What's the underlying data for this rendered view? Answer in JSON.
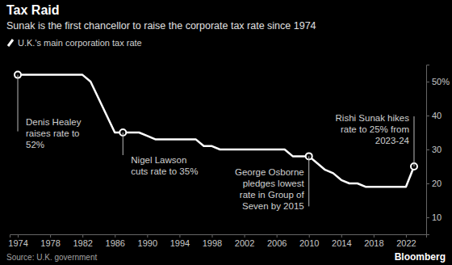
{
  "chart_data": {
    "type": "line",
    "title": "Tax Raid",
    "subtitle": "Sunak is the first chancellor to raise the corporate tax rate since 1974",
    "source": "Source: U.K. government",
    "brand": "Bloomberg",
    "x": [
      1974,
      1975,
      1976,
      1977,
      1978,
      1979,
      1980,
      1981,
      1982,
      1983,
      1984,
      1985,
      1986,
      1987,
      1988,
      1989,
      1990,
      1991,
      1992,
      1993,
      1994,
      1995,
      1996,
      1997,
      1998,
      1999,
      2000,
      2001,
      2002,
      2003,
      2004,
      2005,
      2006,
      2007,
      2008,
      2009,
      2010,
      2011,
      2012,
      2013,
      2014,
      2015,
      2016,
      2017,
      2018,
      2019,
      2020,
      2021,
      2022,
      2023
    ],
    "series": [
      {
        "name": "U.K.'s main corporation tax rate",
        "color": "#ffffff",
        "values": [
          52,
          52,
          52,
          52,
          52,
          52,
          52,
          52,
          52,
          50,
          45,
          40,
          35,
          35,
          35,
          35,
          34,
          33,
          33,
          33,
          33,
          33,
          33,
          31,
          31,
          30,
          30,
          30,
          30,
          30,
          30,
          30,
          30,
          30,
          28,
          28,
          28,
          26,
          24,
          23,
          21,
          20,
          20,
          19,
          19,
          19,
          19,
          19,
          19,
          25
        ]
      }
    ],
    "xlim": [
      1973,
      2024.5
    ],
    "xticks": [
      1974,
      1978,
      1982,
      1986,
      1990,
      1994,
      1998,
      2002,
      2006,
      2010,
      2014,
      2018,
      2022
    ],
    "ylim": [
      5,
      55
    ],
    "yticks": [
      10,
      20,
      30,
      40,
      {
        "value": 50,
        "label": "50%"
      }
    ],
    "grid": false,
    "annotations": [
      {
        "text": [
          "Denis Healey",
          "raises rate to",
          "52%"
        ],
        "x": 1974,
        "y": 52
      },
      {
        "text": [
          "Nigel Lawson",
          "cuts rate to 35%"
        ],
        "x": 1987,
        "y": 35
      },
      {
        "text": [
          "George Osborne",
          "pledges lowest",
          "rate in Group of",
          "Seven by 2015"
        ],
        "x": 2010,
        "y": 28
      },
      {
        "text": [
          "Rishi Sunak hikes",
          "rate to 25% from",
          "2023-24"
        ],
        "x": 2023,
        "y": 25
      }
    ]
  }
}
